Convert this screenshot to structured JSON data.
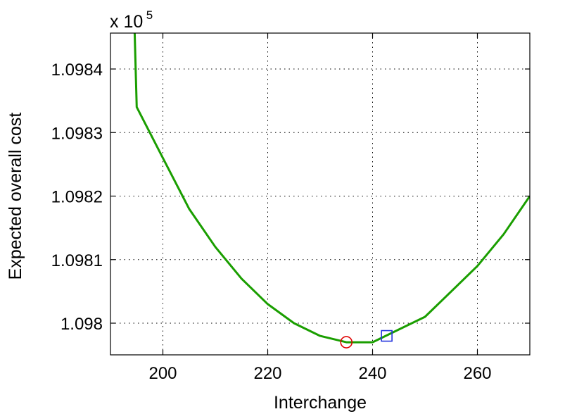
{
  "chart_data": {
    "type": "line",
    "title": "",
    "xlabel": "Interchange",
    "ylabel": "Expected overall cost",
    "y_multiplier": {
      "base": "x 10",
      "exponent": "5"
    },
    "xlim": [
      190,
      270
    ],
    "ylim": [
      1.09795,
      1.09985
    ],
    "x_ticks": [
      200,
      220,
      240,
      260
    ],
    "x_tick_labels": [
      "200",
      "220",
      "240",
      "260"
    ],
    "y_ticks": [
      1.098,
      1.0981,
      1.0982,
      1.0983,
      1.0984
    ],
    "y_tick_labels": [
      "1.098",
      "1.0981",
      "1.0982",
      "1.0983",
      "1.0984"
    ],
    "grid": true,
    "grid_style": "dotted",
    "series": [
      {
        "color": "#1a9e00",
        "x": [
          190,
          195,
          200,
          205,
          210,
          215,
          220,
          225,
          230,
          235,
          240,
          245,
          250,
          255,
          260,
          265,
          270
        ],
        "y": [
          1.09984,
          1.09834,
          1.09826,
          1.09818,
          1.09812,
          1.09807,
          1.09803,
          1.098,
          1.09798,
          1.09797,
          1.09797,
          1.09799,
          1.09801,
          1.09805,
          1.09809,
          1.09814,
          1.0982
        ]
      }
    ],
    "markers": [
      {
        "shape": "circle",
        "color": "#e00000",
        "x": 235,
        "y": 1.09797
      },
      {
        "shape": "square",
        "color": "#2233dd",
        "x": 242.7,
        "y": 1.09798
      }
    ]
  }
}
